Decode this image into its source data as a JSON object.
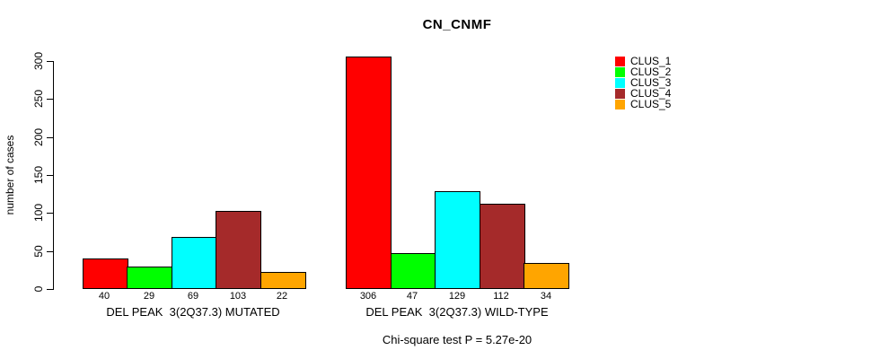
{
  "title": "CN_CNMF",
  "footer": "Chi-square test P = 5.27e-20",
  "chart_data": {
    "type": "bar",
    "title": "CN_CNMF",
    "xlabel": "",
    "ylabel": "number of cases",
    "ylim": [
      0,
      300
    ],
    "yticks": [
      0,
      50,
      100,
      150,
      200,
      250,
      300
    ],
    "grid": false,
    "bar_borders": "black",
    "legend_position": "top-right",
    "series": [
      {
        "name": "CLUS_1",
        "color": "#FF0000"
      },
      {
        "name": "CLUS_2",
        "color": "#00FF00"
      },
      {
        "name": "CLUS_3",
        "color": "#00FFFF"
      },
      {
        "name": "CLUS_4",
        "color": "#A52A2A"
      },
      {
        "name": "CLUS_5",
        "color": "#FFA500"
      }
    ],
    "groups": [
      {
        "label": "DEL PEAK  3(2Q37.3) MUTATED",
        "values": [
          40,
          29,
          69,
          103,
          22
        ]
      },
      {
        "label": "DEL PEAK  3(2Q37.3) WILD-TYPE",
        "values": [
          306,
          47,
          129,
          112,
          34
        ]
      }
    ],
    "annotation": "Chi-square test P = 5.27e-20"
  }
}
